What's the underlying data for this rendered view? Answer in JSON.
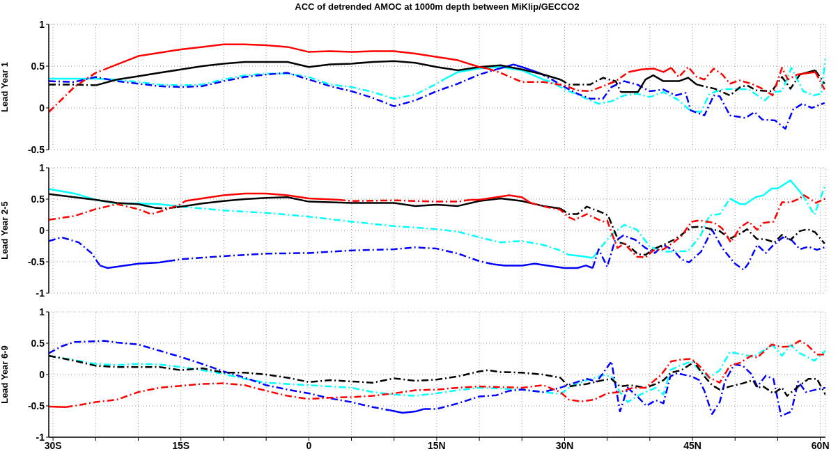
{
  "chart_data": [
    {
      "type": "line",
      "title": "ACC of detrended AMOC at 1000m depth between MiKlip/GECCO2",
      "ylabel": "Lead Year 1",
      "xlim": [
        -30.5,
        60.6
      ],
      "ylim": [
        -0.5,
        1
      ],
      "yticks": [
        -0.5,
        0,
        0.5,
        1
      ],
      "xticks": [
        {
          "value": -30,
          "label": null
        },
        {
          "value": -25,
          "label": null
        },
        {
          "value": -20,
          "label": null
        },
        {
          "value": -15,
          "label": null
        },
        {
          "value": -10,
          "label": null
        },
        {
          "value": -5,
          "label": null
        },
        {
          "value": 0,
          "label": null
        },
        {
          "value": 5,
          "label": null
        },
        {
          "value": 10,
          "label": null
        },
        {
          "value": 15,
          "label": null
        },
        {
          "value": 20,
          "label": null
        },
        {
          "value": 25,
          "label": null
        },
        {
          "value": 30,
          "label": null
        },
        {
          "value": 35,
          "label": null
        },
        {
          "value": 40,
          "label": null
        },
        {
          "value": 45,
          "label": null
        },
        {
          "value": 50,
          "label": null
        },
        {
          "value": 55,
          "label": null
        },
        {
          "value": 60,
          "label": null
        }
      ],
      "tick_labels": "y",
      "grid": true,
      "marker": "none",
      "series": [
        {
          "color": "#00ffff",
          "line_style": "solid",
          "x": [
            -30.5,
            -27.5,
            -25,
            -22.7
          ],
          "values": [
            0.35,
            0.35,
            0.35,
            0.34
          ]
        },
        {
          "color": "#00ffff",
          "line_style": "dashed",
          "x": [
            -22.7,
            -20,
            -17.5,
            -15,
            -12.5,
            -10,
            -7.5,
            -5,
            -2.5,
            0,
            2.5,
            5,
            7.5,
            10,
            12.5,
            15,
            16
          ],
          "values": [
            0.34,
            0.31,
            0.28,
            0.27,
            0.28,
            0.34,
            0.39,
            0.41,
            0.41,
            0.37,
            0.28,
            0.25,
            0.19,
            0.11,
            0.16,
            0.29,
            0.35
          ]
        },
        {
          "color": "#00ffff",
          "line_style": "solid",
          "x": [
            16,
            17.5,
            20,
            22.5,
            25,
            27.5
          ],
          "values": [
            0.35,
            0.43,
            0.47,
            0.49,
            0.45,
            0.34
          ]
        },
        {
          "color": "#00ffff",
          "line_style": "dashed",
          "x": [
            27.5,
            28.5,
            30,
            31.5,
            33,
            34,
            35.5,
            37,
            38.5,
            40,
            41.6,
            43.4,
            44.7,
            46,
            47,
            48.5,
            50,
            51.6,
            53.5,
            54.5,
            55.5,
            56.6,
            57.3,
            58,
            59.2,
            60.1,
            60.6
          ],
          "values": [
            0.34,
            0.31,
            0.22,
            0.16,
            0.09,
            0.05,
            0.08,
            0.15,
            0.17,
            0.13,
            0.19,
            0.09,
            -0.03,
            -0.05,
            0.17,
            0.22,
            0.23,
            0.22,
            0.09,
            0.19,
            0.2,
            0.48,
            0.34,
            0.2,
            0.15,
            0.17,
            0.59
          ]
        },
        {
          "color": "#0000ff",
          "line_style": "dashed",
          "x": [
            -30.5,
            -27.5,
            -25,
            -22.5,
            -20,
            -17.5,
            -15,
            -12.5,
            -10,
            -7.5,
            -5,
            -2.5,
            0,
            2.5,
            5,
            7.5,
            10,
            12.5,
            15,
            17.5,
            20,
            22
          ],
          "values": [
            0.32,
            0.31,
            0.37,
            0.32,
            0.29,
            0.26,
            0.25,
            0.26,
            0.32,
            0.37,
            0.4,
            0.42,
            0.34,
            0.26,
            0.2,
            0.12,
            0.02,
            0.09,
            0.2,
            0.29,
            0.4,
            0.46
          ]
        },
        {
          "color": "#0000ff",
          "line_style": "solid",
          "x": [
            22,
            24,
            25,
            27
          ],
          "values": [
            0.46,
            0.52,
            0.49,
            0.42
          ]
        },
        {
          "color": "#0000ff",
          "line_style": "dashed",
          "x": [
            27,
            28.5,
            30,
            31.5,
            33,
            34.5,
            35.5,
            37,
            38.5,
            40,
            41.6,
            43,
            44.2,
            44.8,
            46.4,
            47.5,
            48.2,
            49.4,
            51.2,
            52.3,
            53.2,
            54.7,
            55.9,
            56.8,
            57.9,
            59,
            60.5
          ],
          "values": [
            0.42,
            0.34,
            0.25,
            0.17,
            0.11,
            0.11,
            0.25,
            0.32,
            0.28,
            0.2,
            0.22,
            0.15,
            0.18,
            -0.03,
            -0.09,
            0.15,
            0.14,
            -0.09,
            -0.12,
            -0.05,
            -0.14,
            -0.15,
            -0.25,
            -0.02,
            0.05,
            0,
            0.06
          ]
        },
        {
          "color": "#000000",
          "line_style": "dashed",
          "x": [
            -30.5,
            -27.5,
            -25
          ],
          "values": [
            0.28,
            0.28,
            0.27
          ]
        },
        {
          "color": "#000000",
          "line_style": "solid",
          "x": [
            -25,
            -22.5,
            -20,
            -17.5,
            -15,
            -12.5,
            -10,
            -7.5,
            -5,
            -2.5,
            0,
            2.5,
            5,
            7.5,
            10,
            12.5,
            15,
            17.5,
            20,
            22.5,
            25,
            27.5,
            29.5
          ],
          "values": [
            0.27,
            0.34,
            0.38,
            0.42,
            0.46,
            0.5,
            0.53,
            0.55,
            0.55,
            0.55,
            0.49,
            0.52,
            0.53,
            0.55,
            0.56,
            0.54,
            0.49,
            0.45,
            0.49,
            0.51,
            0.46,
            0.4,
            0.34
          ]
        },
        {
          "color": "#000000",
          "line_style": "dashed",
          "x": [
            29.5,
            30.5,
            33,
            34.5,
            36,
            36.6
          ],
          "values": [
            0.34,
            0.28,
            0.28,
            0.36,
            0.32,
            0.19
          ]
        },
        {
          "color": "#000000",
          "line_style": "solid",
          "x": [
            36.6,
            38.6,
            39.5,
            40.4,
            41.6,
            43.4,
            44.5,
            45.5
          ],
          "values": [
            0.19,
            0.19,
            0.34,
            0.39,
            0.32,
            0.32,
            0.36,
            0.28
          ]
        },
        {
          "color": "#000000",
          "line_style": "dashed",
          "x": [
            45.5,
            46.7,
            47.6,
            49.4,
            50.6,
            51.4,
            52.5,
            54.3,
            55.5,
            56.5,
            57.6
          ],
          "values": [
            0.28,
            0.25,
            0.23,
            0.15,
            0.25,
            0.27,
            0.21,
            0.2,
            0.37,
            0.23,
            0.4
          ]
        },
        {
          "color": "#000000",
          "line_style": "solid",
          "x": [
            57.6,
            59.4
          ],
          "values": [
            0.4,
            0.45
          ]
        },
        {
          "color": "#000000",
          "line_style": "dashed",
          "x": [
            59.4,
            60.5
          ],
          "values": [
            0.45,
            0.29
          ]
        },
        {
          "color": "#ff0000",
          "line_style": "dashed",
          "x": [
            -30.5,
            -27.5,
            -25,
            -24
          ],
          "values": [
            -0.05,
            0.25,
            0.42,
            0.46
          ]
        },
        {
          "color": "#ff0000",
          "line_style": "solid",
          "x": [
            -24,
            -22.5,
            -20,
            -17.5,
            -15,
            -12.5,
            -10,
            -7.5,
            -5,
            -2.5,
            0,
            2.5,
            5,
            7.5,
            10,
            12.5,
            15,
            17.5,
            20,
            21
          ],
          "values": [
            0.46,
            0.52,
            0.62,
            0.66,
            0.7,
            0.73,
            0.76,
            0.76,
            0.75,
            0.73,
            0.67,
            0.68,
            0.67,
            0.68,
            0.68,
            0.65,
            0.61,
            0.57,
            0.49,
            0.47
          ]
        },
        {
          "color": "#ff0000",
          "line_style": "dashed",
          "x": [
            21,
            22.5,
            25,
            27.5,
            30,
            31.5,
            33,
            34.5,
            36,
            37.5
          ],
          "values": [
            0.47,
            0.42,
            0.31,
            0.31,
            0.27,
            0.21,
            0.2,
            0.26,
            0.32,
            0.43
          ]
        },
        {
          "color": "#ff0000",
          "line_style": "solid",
          "x": [
            37.5,
            39,
            40.5,
            41.6,
            42.5
          ],
          "values": [
            0.43,
            0.46,
            0.47,
            0.43,
            0.48
          ]
        },
        {
          "color": "#ff0000",
          "line_style": "dashed",
          "x": [
            42.5,
            43.4,
            44.5,
            45.5,
            46.4,
            47.5,
            48.5,
            49.4,
            50.5,
            51.9,
            53.4,
            54.4,
            55.5,
            56.2,
            57.3
          ],
          "values": [
            0.48,
            0.37,
            0.49,
            0.37,
            0.34,
            0.47,
            0.4,
            0.29,
            0.33,
            0.29,
            0.22,
            0.15,
            0.48,
            0.34,
            0.4
          ]
        },
        {
          "color": "#ff0000",
          "line_style": "solid",
          "x": [
            57.3,
            59.4
          ],
          "values": [
            0.4,
            0.43
          ]
        },
        {
          "color": "#ff0000",
          "line_style": "dashed",
          "x": [
            59.4,
            60.5
          ],
          "values": [
            0.43,
            0.22
          ]
        }
      ]
    },
    {
      "type": "line",
      "ylabel": "Lead Year 2-5",
      "xlim": [
        -30.5,
        60.6
      ],
      "ylim": [
        -1,
        1
      ],
      "yticks": [
        -1,
        -0.5,
        0,
        0.5,
        1
      ],
      "xticks": [
        {
          "value": -30,
          "label": null
        },
        {
          "value": -25,
          "label": null
        },
        {
          "value": -20,
          "label": null
        },
        {
          "value": -15,
          "label": null
        },
        {
          "value": -10,
          "label": null
        },
        {
          "value": -5,
          "label": null
        },
        {
          "value": 0,
          "label": null
        },
        {
          "value": 5,
          "label": null
        },
        {
          "value": 10,
          "label": null
        },
        {
          "value": 15,
          "label": null
        },
        {
          "value": 20,
          "label": null
        },
        {
          "value": 25,
          "label": null
        },
        {
          "value": 30,
          "label": null
        },
        {
          "value": 35,
          "label": null
        },
        {
          "value": 40,
          "label": null
        },
        {
          "value": 45,
          "label": null
        },
        {
          "value": 50,
          "label": null
        },
        {
          "value": 55,
          "label": null
        },
        {
          "value": 60,
          "label": null
        }
      ],
      "tick_labels": "y",
      "grid": true,
      "marker": "none",
      "series": [
        {
          "color": "#00ffff",
          "line_style": "solid",
          "x": [
            -30.5,
            -27.5,
            -25,
            -22.5,
            -20,
            -17.5,
            -15
          ],
          "values": [
            0.66,
            0.59,
            0.49,
            0.43,
            0.43,
            0.42,
            0.38
          ]
        },
        {
          "color": "#00ffff",
          "line_style": "dashed",
          "x": [
            -15,
            -10,
            -5,
            0,
            5,
            10,
            15,
            17.5,
            20,
            22.5,
            25,
            27.5,
            29.5,
            30.5
          ],
          "values": [
            0.38,
            0.32,
            0.28,
            0.22,
            0.14,
            0.07,
            0.02,
            -0.02,
            -0.11,
            -0.19,
            -0.17,
            -0.23,
            -0.32,
            -0.39
          ]
        },
        {
          "color": "#00ffff",
          "line_style": "solid",
          "x": [
            30.5,
            32,
            33.3
          ],
          "values": [
            -0.39,
            -0.41,
            -0.44
          ]
        },
        {
          "color": "#00ffff",
          "line_style": "dashed",
          "x": [
            33.3,
            34.5,
            35.5,
            37,
            38.5,
            40,
            41.8,
            44.5,
            46,
            47,
            48.2,
            49.4
          ],
          "values": [
            -0.44,
            -0.23,
            -0.07,
            0.09,
            0.01,
            -0.26,
            -0.34,
            -0.33,
            -0.07,
            0.24,
            0.26,
            0.51
          ]
        },
        {
          "color": "#00ffff",
          "line_style": "solid",
          "x": [
            49.4,
            50.6,
            51.2,
            52.4,
            53.3,
            54.3,
            55,
            56.5,
            57.9
          ],
          "values": [
            0.51,
            0.42,
            0.42,
            0.53,
            0.56,
            0.67,
            0.67,
            0.8,
            0.57
          ]
        },
        {
          "color": "#00ffff",
          "line_style": "dashed",
          "x": [
            57.9,
            59.3,
            60.6
          ],
          "values": [
            0.57,
            0.25,
            0.73
          ]
        },
        {
          "color": "#0000ff",
          "line_style": "dashed",
          "x": [
            -30.5,
            -29,
            -27,
            -25.5,
            -24.5
          ],
          "values": [
            -0.17,
            -0.11,
            -0.19,
            -0.36,
            -0.56
          ]
        },
        {
          "color": "#0000ff",
          "line_style": "solid",
          "x": [
            -24.5,
            -23.6,
            -20,
            -17.5,
            -16.5
          ],
          "values": [
            -0.56,
            -0.6,
            -0.53,
            -0.51,
            -0.49
          ]
        },
        {
          "color": "#0000ff",
          "line_style": "dashed",
          "x": [
            -16.5,
            -15,
            -10,
            -5,
            0,
            5,
            10,
            12.5,
            15,
            17.5,
            20,
            21.6
          ],
          "values": [
            -0.49,
            -0.46,
            -0.41,
            -0.37,
            -0.36,
            -0.32,
            -0.3,
            -0.27,
            -0.29,
            -0.37,
            -0.49,
            -0.54
          ]
        },
        {
          "color": "#0000ff",
          "line_style": "solid",
          "x": [
            21.6,
            23,
            25,
            26.5,
            28,
            30,
            31.5,
            32.5,
            33.3
          ],
          "values": [
            -0.54,
            -0.56,
            -0.56,
            -0.53,
            -0.56,
            -0.6,
            -0.6,
            -0.56,
            -0.6
          ]
        },
        {
          "color": "#0000ff",
          "line_style": "dashed",
          "x": [
            33.3,
            34,
            35,
            35.9,
            36.9,
            38.3,
            39.5,
            40.6,
            41.6,
            42.8,
            43.7,
            44.6,
            46,
            47.3,
            48.5,
            49.9,
            51,
            51.5,
            52.6,
            53.6,
            54.5,
            55.6,
            56.6,
            57.6,
            58.6,
            59.6,
            60.5
          ],
          "values": [
            -0.6,
            -0.3,
            -0.58,
            -0.17,
            -0.08,
            -0.15,
            -0.28,
            -0.36,
            -0.23,
            -0.32,
            -0.46,
            -0.51,
            -0.34,
            0.01,
            -0.28,
            -0.52,
            -0.63,
            -0.54,
            -0.23,
            -0.36,
            -0.23,
            -0.11,
            -0.15,
            -0.3,
            -0.26,
            -0.31,
            -0.27
          ]
        },
        {
          "color": "#000000",
          "line_style": "solid",
          "x": [
            -30.5,
            -27.5,
            -25,
            -22.5,
            -20,
            -18
          ],
          "values": [
            0.58,
            0.53,
            0.49,
            0.44,
            0.42,
            0.36
          ]
        },
        {
          "color": "#000000",
          "line_style": "dashed",
          "x": [
            -18,
            -17,
            -15.5
          ],
          "values": [
            0.36,
            0.35,
            0.37
          ]
        },
        {
          "color": "#000000",
          "line_style": "solid",
          "x": [
            -15.5,
            -12.5,
            -10,
            -7.5,
            -5,
            -2.5,
            0,
            5,
            10,
            12.5,
            15,
            17.5,
            20,
            22.5,
            25,
            27.5,
            29.5
          ],
          "values": [
            0.37,
            0.43,
            0.47,
            0.5,
            0.52,
            0.53,
            0.46,
            0.44,
            0.44,
            0.39,
            0.41,
            0.39,
            0.47,
            0.51,
            0.47,
            0.39,
            0.35
          ]
        },
        {
          "color": "#000000",
          "line_style": "dashed",
          "x": [
            29.5,
            30.5,
            31.5,
            32.6,
            34.5,
            35.1,
            36.4,
            37.4,
            38.6,
            39.5,
            40.4,
            41.6,
            42.8,
            43.7,
            44.9,
            45.8,
            47.3,
            48.2,
            49.4,
            50.6,
            51.4,
            52.6,
            53.5,
            54.6,
            55.5,
            56.5,
            57.6,
            58.5,
            59.4,
            60.5
          ],
          "values": [
            0.35,
            0.26,
            0.26,
            0.38,
            0.28,
            0.24,
            -0.19,
            -0.23,
            -0.38,
            -0.39,
            -0.3,
            -0.23,
            -0.15,
            -0.07,
            0.05,
            0.06,
            0.02,
            -0.01,
            -0.13,
            -0.05,
            0.02,
            -0.14,
            -0.14,
            -0.19,
            -0.07,
            -0.15,
            -0.01,
            0.02,
            -0.03,
            -0.21
          ]
        },
        {
          "color": "#ff0000",
          "line_style": "dashed",
          "x": [
            -30.5,
            -27.5,
            -25,
            -22.5,
            -20,
            -18.5,
            -17,
            -15,
            -14.5
          ],
          "values": [
            0.17,
            0.23,
            0.34,
            0.42,
            0.34,
            0.26,
            0.32,
            0.42,
            0.47
          ]
        },
        {
          "color": "#ff0000",
          "line_style": "solid",
          "x": [
            -14.5,
            -12.5,
            -10,
            -7.5,
            -5,
            -2.5,
            0,
            3.5
          ],
          "values": [
            0.47,
            0.51,
            0.56,
            0.59,
            0.59,
            0.56,
            0.51,
            0.49
          ]
        },
        {
          "color": "#ff0000",
          "line_style": "dashed",
          "x": [
            3.5,
            5,
            10,
            15,
            17.5,
            19
          ],
          "values": [
            0.49,
            0.47,
            0.48,
            0.46,
            0.46,
            0.49
          ]
        },
        {
          "color": "#ff0000",
          "line_style": "solid",
          "x": [
            19,
            20,
            23.5,
            25,
            26
          ],
          "values": [
            0.49,
            0.49,
            0.56,
            0.53,
            0.44
          ]
        },
        {
          "color": "#ff0000",
          "line_style": "dashed",
          "x": [
            26,
            28,
            29.5,
            30.5,
            31.2,
            32.6,
            34.5,
            35,
            35.6,
            36.2,
            37,
            38.5,
            39.5,
            40.4,
            41.6,
            42.8,
            43.7,
            44.9,
            45.8,
            46.7,
            47.6,
            48.5,
            49.5,
            50.6,
            51.6,
            52.6,
            53.3,
            54.5,
            55.5,
            56.5,
            57.6,
            58,
            59.5,
            60.6
          ],
          "values": [
            0.44,
            0.37,
            0.33,
            0.21,
            0.17,
            0.26,
            0.14,
            0.16,
            -0.07,
            -0.28,
            -0.21,
            -0.42,
            -0.43,
            -0.32,
            -0.3,
            -0.19,
            -0.09,
            0.14,
            0.16,
            0.14,
            0.12,
            0.03,
            -0.19,
            0.05,
            0.14,
            0.01,
            0.12,
            0.14,
            0.45,
            0.45,
            0.51,
            0.57,
            0.44,
            0.51
          ]
        }
      ]
    },
    {
      "type": "line",
      "ylabel": "Lead Year 6-9",
      "xlim": [
        -30.5,
        60.6
      ],
      "ylim": [
        -1,
        1
      ],
      "yticks": [
        -1,
        -0.5,
        0,
        0.5,
        1
      ],
      "xticks": [
        {
          "value": -30,
          "label": "30S"
        },
        {
          "value": -25,
          "label": null
        },
        {
          "value": -20,
          "label": null
        },
        {
          "value": -15,
          "label": "15S"
        },
        {
          "value": -10,
          "label": null
        },
        {
          "value": -5,
          "label": null
        },
        0,
        {
          "value": 5,
          "label": null
        },
        {
          "value": 10,
          "label": null
        },
        {
          "value": 15,
          "label": "15N"
        },
        {
          "value": 20,
          "label": null
        },
        {
          "value": 25,
          "label": null
        },
        {
          "value": 30,
          "label": "30N"
        },
        {
          "value": 35,
          "label": null
        },
        {
          "value": 40,
          "label": null
        },
        {
          "value": 45,
          "label": "45N"
        },
        {
          "value": 50,
          "label": null
        },
        {
          "value": 55,
          "label": null
        },
        {
          "value": 60,
          "label": "60N"
        }
      ],
      "grid": true,
      "marker": "none",
      "series": [
        {
          "color": "#00ffff",
          "line_style": "dashed",
          "x": [
            -30.5,
            -27.5,
            -25,
            -22.5,
            -20,
            -17.5,
            -15,
            -12.5,
            -10,
            -7.5,
            -5,
            0,
            5,
            7.5,
            10,
            12.5,
            15,
            17.5,
            20,
            25,
            27.5,
            29.5,
            31,
            32.6,
            34.5,
            35.5,
            36.5,
            37.4,
            38.6,
            39.5,
            40.7,
            41.6,
            42.4,
            43.5,
            44.9,
            45.8,
            47,
            48.2,
            49.4,
            50.9,
            52.1,
            53.3,
            54.4,
            55.5,
            56.5,
            57.6,
            59.3,
            60.6
          ],
          "values": [
            0.3,
            0.23,
            0.17,
            0.15,
            0.17,
            0.16,
            0.12,
            0.07,
            0.01,
            -0.07,
            -0.13,
            -0.17,
            -0.21,
            -0.28,
            -0.32,
            -0.34,
            -0.3,
            -0.25,
            -0.21,
            -0.24,
            -0.28,
            -0.31,
            -0.17,
            -0.09,
            -0.01,
            -0.03,
            -0.28,
            -0.44,
            -0.34,
            -0.28,
            -0.21,
            -0.32,
            0.07,
            0.14,
            0.21,
            0.07,
            -0.05,
            0.07,
            0.36,
            0.32,
            0.28,
            0.38,
            0.47,
            0.3,
            0.47,
            0.34,
            0.22,
            0.38
          ]
        },
        {
          "color": "#0000ff",
          "line_style": "dashed",
          "x": [
            -30.5,
            -29,
            -27.5,
            -25,
            -24,
            -22.5,
            -20,
            -17.5,
            -15,
            -12.5,
            -10,
            -7.5,
            -5,
            -2.5,
            0,
            2.5,
            5,
            7.5,
            9.5
          ],
          "values": [
            0.34,
            0.45,
            0.52,
            0.53,
            0.54,
            0.51,
            0.48,
            0.38,
            0.28,
            0.17,
            0.05,
            -0.05,
            -0.17,
            -0.24,
            -0.3,
            -0.38,
            -0.44,
            -0.52,
            -0.57
          ]
        },
        {
          "color": "#0000ff",
          "line_style": "solid",
          "x": [
            9.5,
            11,
            12.5,
            13.5
          ],
          "values": [
            -0.57,
            -0.61,
            -0.59,
            -0.55
          ]
        },
        {
          "color": "#0000ff",
          "line_style": "dashed",
          "x": [
            13.5,
            15,
            17.5,
            20,
            22,
            23.5,
            25,
            27.5,
            29.5,
            31,
            32.6,
            33.8,
            35.5,
            36.5,
            37.4,
            38.6,
            39.6,
            40.7,
            41.6,
            42.4,
            43.2,
            44.9,
            45.8,
            46.4,
            47.3,
            48.2,
            48.8,
            49.9,
            50.9,
            51.9,
            52.6,
            53.6,
            54.5,
            55.4,
            56.6,
            57.4,
            58.3,
            59.5,
            60.6
          ],
          "values": [
            -0.55,
            -0.55,
            -0.46,
            -0.35,
            -0.33,
            -0.26,
            -0.24,
            -0.28,
            -0.21,
            -0.14,
            -0.07,
            -0.11,
            0.21,
            -0.59,
            -0.21,
            -0.36,
            -0.5,
            -0.41,
            -0.46,
            -0.03,
            0.02,
            -0.03,
            -0.09,
            -0.26,
            -0.63,
            -0.44,
            -0.11,
            0.16,
            0.14,
            0.01,
            -0.19,
            -0.02,
            -0.07,
            -0.66,
            -0.59,
            -0.11,
            -0.28,
            -0.24,
            -0.21
          ]
        },
        {
          "color": "#000000",
          "line_style": "dashed",
          "x": [
            -30.5,
            -27.5,
            -25,
            -22.5,
            -20,
            -17.5,
            -15,
            -12.5,
            -10,
            -7.5,
            -5,
            -2.5,
            0,
            2.5,
            5,
            7.5,
            10,
            12.5,
            15,
            17.5,
            20,
            21,
            22.5,
            25,
            27.5,
            29.5,
            30.5,
            32.6,
            34.5,
            35.5,
            36.5,
            37.7,
            39.5,
            40.7,
            41.6,
            42.5,
            43.7,
            45.2,
            46.4,
            47.3,
            48.2,
            49.4,
            50.9,
            52.1,
            52.6,
            53.3,
            54.5,
            55.5,
            56.1,
            57.6,
            58.6,
            59.6,
            60.6
          ],
          "values": [
            0.3,
            0.22,
            0.14,
            0.12,
            0.12,
            0.12,
            0.07,
            0.1,
            0.03,
            0.03,
            0,
            -0.05,
            -0.12,
            -0.09,
            -0.11,
            -0.13,
            -0.06,
            -0.1,
            -0.08,
            -0.03,
            0.05,
            0.07,
            0.04,
            0.03,
            0,
            -0.05,
            -0.19,
            -0.15,
            -0.09,
            -0.07,
            -0.19,
            -0.17,
            -0.21,
            -0.15,
            -0.09,
            0.03,
            0.07,
            0.2,
            -0.03,
            -0.17,
            -0.24,
            -0.19,
            -0.14,
            -0.09,
            -0.21,
            -0.19,
            -0.3,
            -0.21,
            -0.34,
            -0.17,
            -0.07,
            -0.07,
            -0.32
          ]
        },
        {
          "color": "#ff0000",
          "line_style": "solid",
          "x": [
            -30.5,
            -28.5
          ],
          "values": [
            -0.51,
            -0.52
          ]
        },
        {
          "color": "#ff0000",
          "line_style": "dashed",
          "x": [
            -28.5,
            -27.5,
            -25,
            -22.5,
            -20,
            -17.5,
            -15,
            -12.5,
            -10,
            -7.5,
            -5,
            -2.5,
            0,
            2.5,
            5,
            7.5,
            10,
            12.5,
            15,
            17.5,
            20,
            25,
            27.5,
            29.5,
            30.5,
            31.9,
            33.5,
            35,
            36.5,
            38,
            39.5,
            41.3,
            42.5,
            43.7,
            44.9,
            46.1,
            47,
            48.2,
            49.4,
            50.6,
            51.9,
            52.6,
            54.3,
            55.4,
            56.5,
            57.6,
            58.4,
            59.6,
            60.6
          ],
          "values": [
            -0.52,
            -0.5,
            -0.44,
            -0.4,
            -0.28,
            -0.21,
            -0.18,
            -0.15,
            -0.14,
            -0.17,
            -0.26,
            -0.34,
            -0.39,
            -0.37,
            -0.36,
            -0.34,
            -0.3,
            -0.25,
            -0.24,
            -0.21,
            -0.19,
            -0.21,
            -0.17,
            -0.28,
            -0.4,
            -0.43,
            -0.4,
            -0.3,
            -0.28,
            -0.21,
            -0.21,
            -0.01,
            0.21,
            0.24,
            0.25,
            0.1,
            -0.05,
            -0.13,
            0.14,
            0.19,
            0.3,
            0.27,
            0.48,
            0.44,
            0.45,
            0.54,
            0.48,
            0.32,
            0.32
          ]
        }
      ]
    }
  ]
}
